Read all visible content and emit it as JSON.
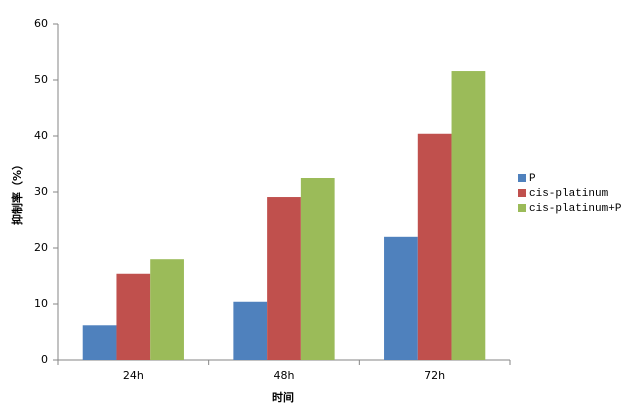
{
  "chart_data": {
    "type": "bar",
    "x_label": "时间",
    "y_label": "抑制率（%）",
    "categories": [
      "24h",
      "48h",
      "72h"
    ],
    "series": [
      {
        "name": "P",
        "color": "#4f81bd",
        "values": [
          6.2,
          10.4,
          22.0
        ]
      },
      {
        "name": "cis-platinum",
        "color": "#c0504d",
        "values": [
          15.4,
          29.1,
          40.4
        ]
      },
      {
        "name": "cis-platinum+P",
        "color": "#9bbb59",
        "values": [
          18.0,
          32.5,
          51.6
        ]
      }
    ],
    "ylim": [
      0,
      60
    ],
    "yticks": [
      0,
      10,
      20,
      30,
      40,
      50,
      60
    ],
    "grid": false,
    "legend": "right"
  }
}
